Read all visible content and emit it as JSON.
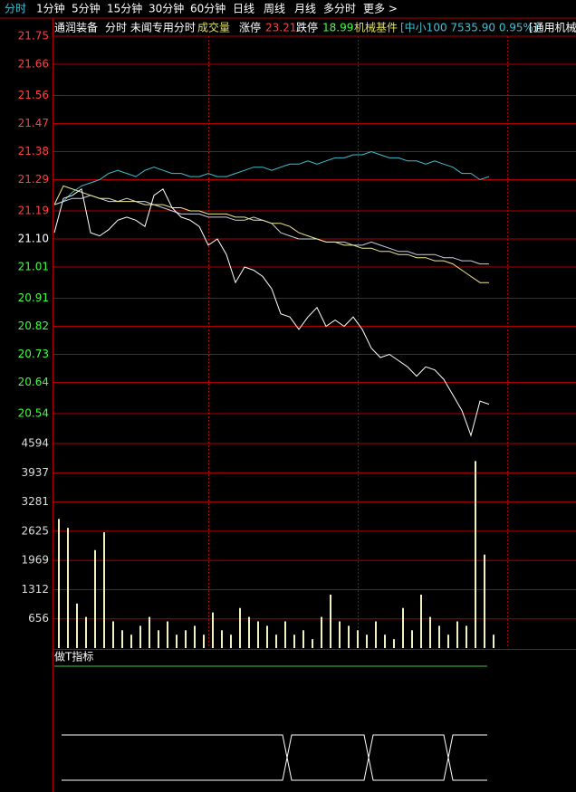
{
  "tabs": [
    "分时",
    "1分钟",
    "5分钟",
    "15分钟",
    "30分钟",
    "60分钟",
    "日线",
    "周线",
    "月线",
    "多分时",
    "更多 >"
  ],
  "info": {
    "stock": "通润装备",
    "view": "分时 未闻专用分时",
    "volume": "成交量",
    "limit_up_label": "涨停",
    "limit_up": "23.21",
    "limit_down_label": "跌停",
    "limit_down": "18.99",
    "sector": "机械基件",
    "index": "[中小100 7535.90 0.95%]",
    "sector2": "[通用机械"
  },
  "indicator": {
    "title": "做T指标"
  },
  "chart_data": [
    {
      "type": "line",
      "ylim": [
        20.45,
        21.75
      ],
      "yticks": [
        21.75,
        21.66,
        21.56,
        21.47,
        21.38,
        21.29,
        21.19,
        {
          "value": 21.1,
          "label": "21.10"
        },
        21.01,
        20.91,
        20.82,
        20.73,
        20.64,
        20.54
      ],
      "ytick_colors": [
        "#ff4040",
        "#ff4040",
        "#ff4040",
        "#ff4040",
        "#ff4040",
        "#ff4040",
        "#ff4040",
        "#ffffff",
        "#40ff40",
        "#40ff40",
        "#40ff40",
        "#40ff40",
        "#40ff40",
        "#40ff40"
      ],
      "grid": true,
      "grid_color": "#b00000",
      "series": [
        {
          "color": "#40c0d0",
          "values": [
            21.21,
            21.22,
            21.25,
            21.27,
            21.28,
            21.29,
            21.31,
            21.32,
            21.31,
            21.3,
            21.32,
            21.33,
            21.32,
            21.31,
            21.31,
            21.3,
            21.3,
            21.31,
            21.3,
            21.3,
            21.31,
            21.32,
            21.33,
            21.33,
            21.32,
            21.33,
            21.34,
            21.34,
            21.35,
            21.34,
            21.35,
            21.36,
            21.36,
            21.37,
            21.37,
            21.38,
            21.37,
            21.36,
            21.36,
            21.35,
            21.35,
            21.34,
            21.35,
            21.34,
            21.33,
            21.31,
            21.31,
            21.29,
            21.3
          ]
        },
        {
          "color": "#c8d0e0",
          "values": [
            21.21,
            21.22,
            21.23,
            21.23,
            21.24,
            21.23,
            21.22,
            21.22,
            21.23,
            21.22,
            21.22,
            21.21,
            21.2,
            21.19,
            21.18,
            21.18,
            21.18,
            21.17,
            21.17,
            21.17,
            21.16,
            21.16,
            21.17,
            21.16,
            21.15,
            21.12,
            21.11,
            21.1,
            21.1,
            21.1,
            21.09,
            21.09,
            21.09,
            21.08,
            21.08,
            21.09,
            21.08,
            21.07,
            21.06,
            21.06,
            21.05,
            21.05,
            21.05,
            21.04,
            21.04,
            21.03,
            21.03,
            21.02,
            21.02
          ]
        },
        {
          "color": "#f0e890",
          "values": [
            21.21,
            21.27,
            21.26,
            21.25,
            21.24,
            21.23,
            21.23,
            21.22,
            21.22,
            21.22,
            21.21,
            21.21,
            21.21,
            21.2,
            21.2,
            21.19,
            21.19,
            21.18,
            21.18,
            21.18,
            21.17,
            21.17,
            21.16,
            21.16,
            21.15,
            21.15,
            21.14,
            21.12,
            21.11,
            21.1,
            21.09,
            21.09,
            21.08,
            21.08,
            21.07,
            21.07,
            21.06,
            21.06,
            21.05,
            21.05,
            21.04,
            21.04,
            21.03,
            21.03,
            21.02,
            21.0,
            20.98,
            20.96,
            20.96
          ]
        },
        {
          "color": "#ffffff",
          "values": [
            21.12,
            21.23,
            21.24,
            21.26,
            21.12,
            21.11,
            21.13,
            21.16,
            21.17,
            21.16,
            21.14,
            21.24,
            21.26,
            21.2,
            21.17,
            21.16,
            21.14,
            21.08,
            21.1,
            21.05,
            20.96,
            21.01,
            21.0,
            20.98,
            20.94,
            20.86,
            20.85,
            20.81,
            20.85,
            20.88,
            20.82,
            20.84,
            20.82,
            20.85,
            20.81,
            20.75,
            20.72,
            20.73,
            20.71,
            20.69,
            20.66,
            20.69,
            20.68,
            20.65,
            20.6,
            20.55,
            20.47,
            20.58,
            20.57
          ]
        }
      ]
    },
    {
      "type": "bar",
      "ylim": [
        0,
        4594
      ],
      "yticks": [
        4594,
        3937,
        3281,
        2625,
        1969,
        1312,
        656
      ],
      "grid": true,
      "grid_color": "#b00000",
      "color": "#f0f0c0",
      "values": [
        2900,
        2700,
        1000,
        700,
        2200,
        2600,
        600,
        400,
        300,
        500,
        700,
        400,
        600,
        300,
        400,
        500,
        300,
        800,
        400,
        300,
        900,
        700,
        600,
        500,
        300,
        600,
        300,
        400,
        200,
        700,
        1200,
        600,
        500,
        400,
        300,
        600,
        300,
        200,
        900,
        400,
        1200,
        700,
        500,
        300,
        600,
        500,
        4200,
        2100,
        300
      ]
    }
  ]
}
